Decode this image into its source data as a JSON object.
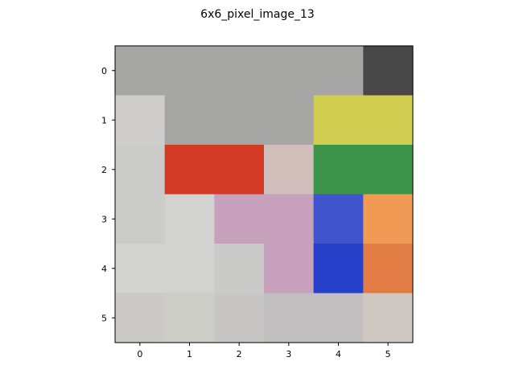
{
  "chart_data": {
    "type": "heatmap",
    "title": "6x6_pixel_image_13",
    "xlabel": "",
    "ylabel": "",
    "x_ticks": [
      "0",
      "1",
      "2",
      "3",
      "4",
      "5"
    ],
    "y_ticks": [
      "0",
      "1",
      "2",
      "3",
      "4",
      "5"
    ],
    "xlim": [
      -0.5,
      5.5
    ],
    "ylim": [
      5.5,
      -0.5
    ],
    "grid": false,
    "pixels": [
      [
        "#a6a6a4",
        "#a6a6a4",
        "#a6a6a4",
        "#a6a6a4",
        "#a6a6a4",
        "#484848"
      ],
      [
        "#cfcdcb",
        "#a6a6a4",
        "#a6a6a4",
        "#a6a6a4",
        "#d1cd51",
        "#d1cd51"
      ],
      [
        "#cbcbc9",
        "#d23a25",
        "#d23a25",
        "#d0bebb",
        "#3c934a",
        "#3c934a"
      ],
      [
        "#cbcbc9",
        "#d2d3d0",
        "#c7a1bb",
        "#c7a1bb",
        "#4055cb",
        "#f09a56"
      ],
      [
        "#d2d2d0",
        "#d2d2d0",
        "#cacac8",
        "#c7a1bb",
        "#253fc8",
        "#e07c44"
      ],
      [
        "#cccac6",
        "#cdcdc8",
        "#c7c6c4",
        "#c1bfc0",
        "#c1bfc0",
        "#cfc8c2"
      ]
    ]
  }
}
